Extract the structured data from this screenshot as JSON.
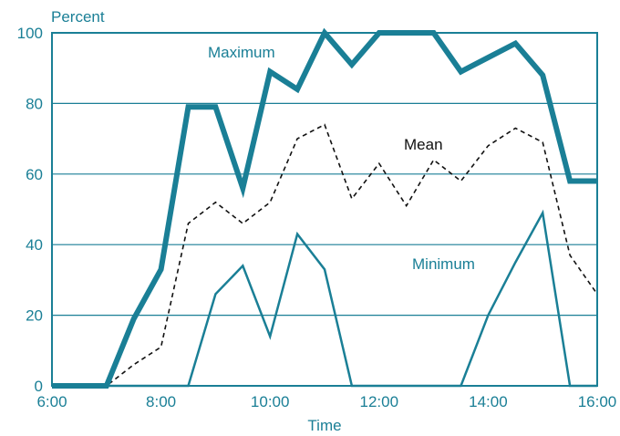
{
  "chart_data": {
    "type": "line",
    "title": "",
    "xlabel": "Time",
    "ylabel": "Percent",
    "xlim": [
      6,
      16
    ],
    "ylim": [
      0,
      100
    ],
    "x_ticks": [
      6,
      8,
      10,
      12,
      14,
      16
    ],
    "x_tick_labels": [
      "6:00",
      "8:00",
      "10:00",
      "12:00",
      "14:00",
      "16:00"
    ],
    "y_ticks": [
      0,
      20,
      40,
      60,
      80,
      100
    ],
    "y_tick_labels": [
      "0",
      "20",
      "40",
      "60",
      "80",
      "100"
    ],
    "grid": "horizontal",
    "colors": {
      "axis": "#1a7f96",
      "series": "#1a7f96",
      "mean": "#111111"
    },
    "series": [
      {
        "name": "Maximum",
        "color": "#1a7f96",
        "style": "thick",
        "x": [
          6.0,
          6.5,
          7.0,
          7.5,
          8.0,
          8.5,
          9.0,
          9.5,
          10.0,
          10.5,
          11.0,
          11.5,
          12.0,
          12.5,
          13.0,
          13.5,
          14.0,
          14.5,
          15.0,
          15.5,
          16.0
        ],
        "values": [
          0,
          0,
          0,
          19,
          33,
          79,
          79,
          56,
          89,
          84,
          100,
          91,
          100,
          100,
          100,
          89,
          93,
          97,
          88,
          58,
          58
        ]
      },
      {
        "name": "Mean",
        "color": "#111111",
        "style": "dashed",
        "x": [
          6.0,
          6.5,
          7.0,
          7.5,
          8.0,
          8.5,
          9.0,
          9.5,
          10.0,
          10.5,
          11.0,
          11.5,
          12.0,
          12.5,
          13.0,
          13.5,
          14.0,
          14.5,
          15.0,
          15.5,
          16.0
        ],
        "values": [
          0,
          0,
          0,
          6,
          11,
          46,
          52,
          46,
          52,
          70,
          74,
          53,
          63,
          51,
          64,
          58,
          68,
          73,
          69,
          37,
          26
        ]
      },
      {
        "name": "Minimum",
        "color": "#1a7f96",
        "style": "thin",
        "x": [
          6.0,
          6.5,
          7.0,
          7.5,
          8.0,
          8.5,
          9.0,
          9.5,
          10.0,
          10.5,
          11.0,
          11.5,
          12.0,
          12.5,
          13.0,
          13.5,
          14.0,
          14.5,
          15.0,
          15.5,
          16.0
        ],
        "values": [
          0,
          0,
          0,
          0,
          0,
          0,
          26,
          34,
          14,
          43,
          33,
          0,
          0,
          0,
          0,
          0,
          20,
          35,
          49,
          0,
          0
        ]
      }
    ]
  }
}
